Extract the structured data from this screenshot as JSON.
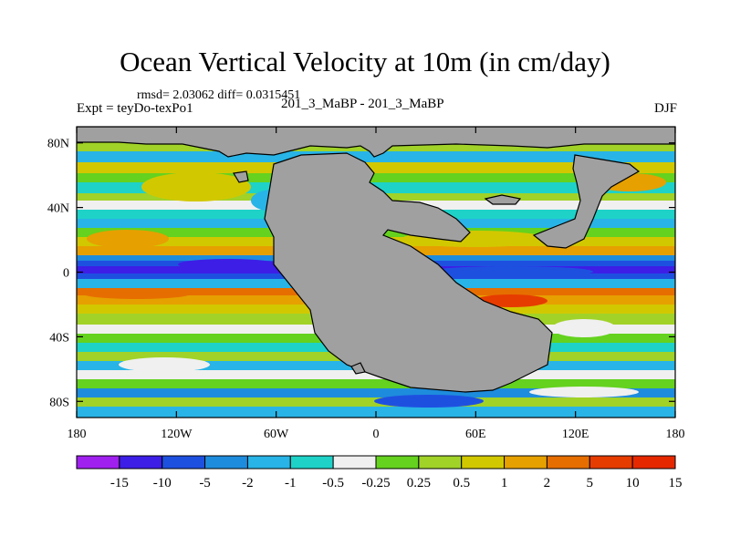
{
  "title": "Ocean Vertical Velocity at 10m (in cm/day)",
  "stats": "rmsd= 2.03062 diff= 0.0315451",
  "expt": "Expt = teyDo-texPo1",
  "cases": "201_3_MaBP - 201_3_MaBP",
  "season": "DJF",
  "map": {
    "lon_range": [
      -180,
      180
    ],
    "lat_range": [
      -90,
      90
    ],
    "x_ticks": [
      {
        "lon": -180,
        "label": "180"
      },
      {
        "lon": -120,
        "label": "120W"
      },
      {
        "lon": -60,
        "label": "60W"
      },
      {
        "lon": 0,
        "label": "0"
      },
      {
        "lon": 60,
        "label": "60E"
      },
      {
        "lon": 120,
        "label": "120E"
      },
      {
        "lon": 180,
        "label": "180"
      }
    ],
    "y_ticks": [
      {
        "lat": 80,
        "label": "80N"
      },
      {
        "lat": 40,
        "label": "40N"
      },
      {
        "lat": 0,
        "label": "0"
      },
      {
        "lat": -40,
        "label": "40S"
      },
      {
        "lat": -80,
        "label": "80S"
      }
    ],
    "land_color": "#a0a0a0"
  },
  "colorbar": {
    "colors": [
      "#a020f0",
      "#3c1ee6",
      "#1e50e0",
      "#1e8cdc",
      "#28b4e6",
      "#1ed2c8",
      "#f0f0f0",
      "#64d21e",
      "#a0d228",
      "#d2c800",
      "#e6a000",
      "#e66e00",
      "#e63c00",
      "#e62800"
    ],
    "labels": [
      "-15",
      "-10",
      "-5",
      "-2",
      "-1",
      "-0.5",
      "-0.25",
      "0.25",
      "0.5",
      "1",
      "2",
      "5",
      "10",
      "15"
    ]
  }
}
